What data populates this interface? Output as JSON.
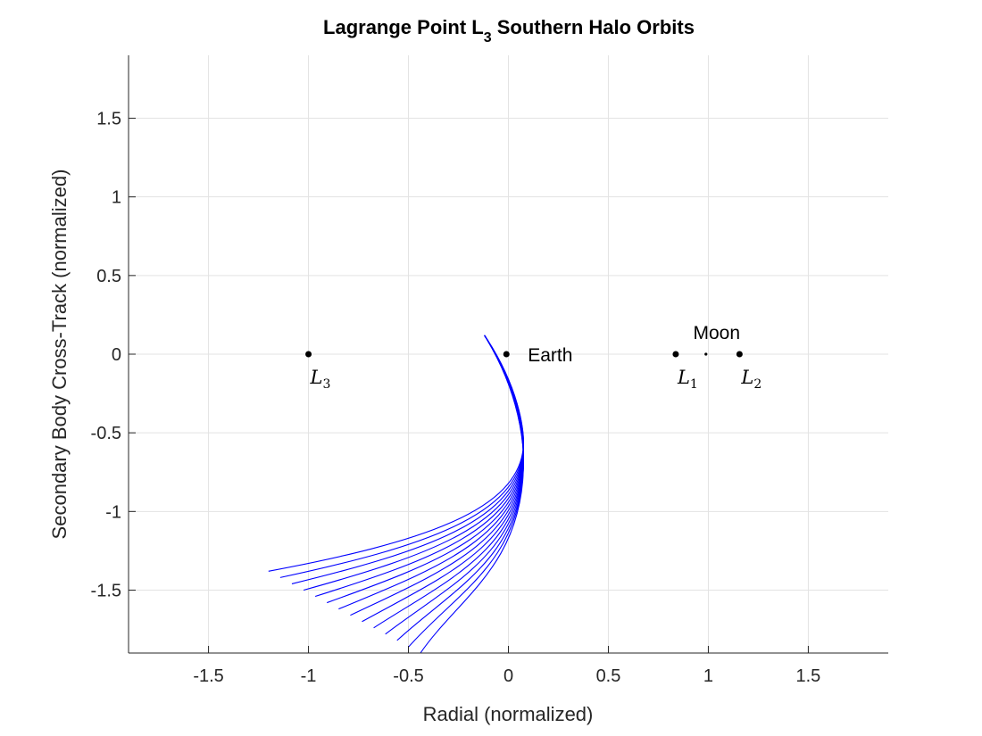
{
  "chart_data": {
    "type": "line",
    "title": {
      "main": "Lagrange Point L",
      "sub": "3",
      "rest": " Southern Halo Orbits"
    },
    "xlabel": "Radial (normalized)",
    "ylabel": "Secondary Body Cross-Track (normalized)",
    "xlim": [
      -1.9,
      1.9
    ],
    "ylim": [
      -1.9,
      1.9
    ],
    "xticks": [
      -1.5,
      -1,
      -0.5,
      0,
      0.5,
      1,
      1.5
    ],
    "xtick_labels": [
      "-1.5",
      "-1",
      "-0.5",
      "0",
      "0.5",
      "1",
      "1.5"
    ],
    "yticks": [
      -1.5,
      -1,
      -0.5,
      0,
      0.5,
      1,
      1.5
    ],
    "ytick_labels": [
      "-1.5",
      "-1",
      "-0.5",
      "0",
      "0.5",
      "1",
      "1.5"
    ],
    "grid": true,
    "line_color": "#0000ff",
    "points": [
      {
        "id": "l3",
        "x": -1.0,
        "y": 0.0,
        "label": "L",
        "sub": "3",
        "label_pos": "below"
      },
      {
        "id": "earth",
        "x": -0.01,
        "y": 0.0,
        "label": "Earth",
        "label_pos": "right"
      },
      {
        "id": "l1",
        "x": 0.837,
        "y": 0.0,
        "label": "L",
        "sub": "1",
        "label_pos": "below"
      },
      {
        "id": "moon",
        "x": 0.988,
        "y": 0.0,
        "label": "Moon",
        "label_pos": "above"
      },
      {
        "id": "l2",
        "x": 1.156,
        "y": 0.0,
        "label": "L",
        "sub": "2",
        "label_pos": "below"
      }
    ],
    "family": {
      "count": 14,
      "shared_top": [
        -0.12,
        0.12
      ],
      "first_end": [
        -1.2,
        -1.38
      ],
      "last_end": [
        -0.44,
        -1.9
      ]
    }
  }
}
